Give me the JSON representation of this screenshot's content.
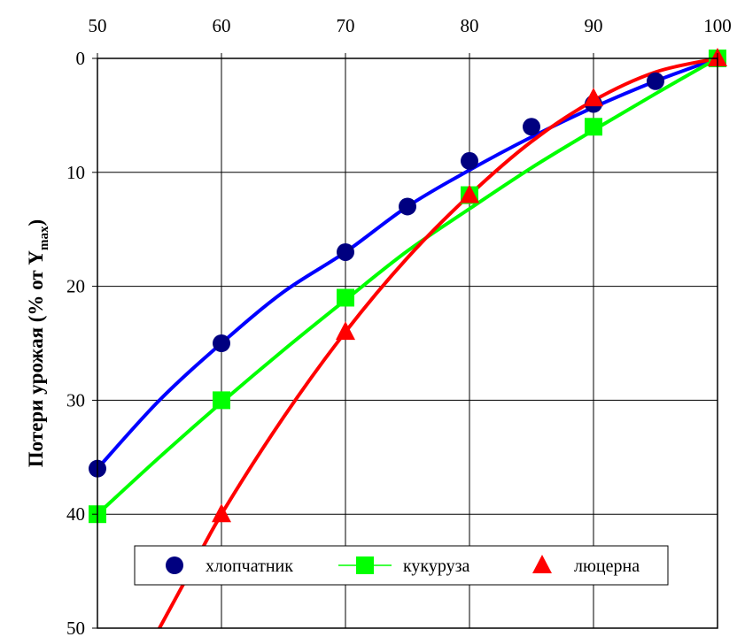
{
  "chart_data": {
    "type": "line",
    "x": [
      50,
      60,
      70,
      75,
      80,
      85,
      90,
      95,
      100
    ],
    "xlim": [
      50,
      100
    ],
    "ylim": [
      0,
      50
    ],
    "y_inverted": true,
    "x_axis_position": "top",
    "xticks": [
      "50",
      "60",
      "70",
      "80",
      "90",
      "100"
    ],
    "yticks": [
      "0",
      "10",
      "20",
      "30",
      "40",
      "50"
    ],
    "ylabel_main": "Потери урожая  (% от Y",
    "ylabel_sub": "max",
    "ylabel_close": ")",
    "grid": true,
    "legend_position": "bottom",
    "series": [
      {
        "name": "хлопчатник",
        "marker": "circle",
        "marker_color": "#000080",
        "line_color": "#0000FF",
        "points": [
          [
            50,
            36
          ],
          [
            60,
            25
          ],
          [
            70,
            17
          ],
          [
            75,
            13
          ],
          [
            80,
            9
          ],
          [
            85,
            6
          ],
          [
            90,
            4
          ],
          [
            95,
            2
          ],
          [
            100,
            0
          ]
        ],
        "curve": [
          [
            50,
            36
          ],
          [
            55,
            30
          ],
          [
            60,
            25
          ],
          [
            65,
            20.5
          ],
          [
            70,
            17
          ],
          [
            75,
            13
          ],
          [
            80,
            9.8
          ],
          [
            85,
            6.9
          ],
          [
            90,
            4.3
          ],
          [
            95,
            2
          ],
          [
            100,
            0
          ]
        ]
      },
      {
        "name": "кукуруза",
        "marker": "square",
        "marker_color": "#00FF00",
        "line_color": "#00FF00",
        "points": [
          [
            50,
            40
          ],
          [
            60,
            30
          ],
          [
            70,
            21
          ],
          [
            80,
            12
          ],
          [
            90,
            6
          ],
          [
            100,
            0
          ]
        ],
        "curve": [
          [
            50,
            40
          ],
          [
            55,
            35
          ],
          [
            60,
            30.2
          ],
          [
            65,
            25.6
          ],
          [
            70,
            21.2
          ],
          [
            75,
            16.9
          ],
          [
            80,
            13.2
          ],
          [
            85,
            9.6
          ],
          [
            90,
            6.3
          ],
          [
            95,
            3.1
          ],
          [
            100,
            0
          ]
        ]
      },
      {
        "name": "люцерна",
        "marker": "triangle",
        "marker_color": "#FF0000",
        "line_color": "#FF0000",
        "points": [
          [
            60,
            40
          ],
          [
            70,
            24
          ],
          [
            80,
            12
          ],
          [
            90,
            3.5
          ],
          [
            100,
            0
          ]
        ],
        "curve": [
          [
            55,
            50
          ],
          [
            57.5,
            45
          ],
          [
            60,
            40
          ],
          [
            65,
            31.5
          ],
          [
            70,
            24
          ],
          [
            75,
            17.5
          ],
          [
            80,
            12
          ],
          [
            85,
            7.3
          ],
          [
            90,
            3.7
          ],
          [
            95,
            1.2
          ],
          [
            100,
            0
          ]
        ]
      }
    ]
  }
}
